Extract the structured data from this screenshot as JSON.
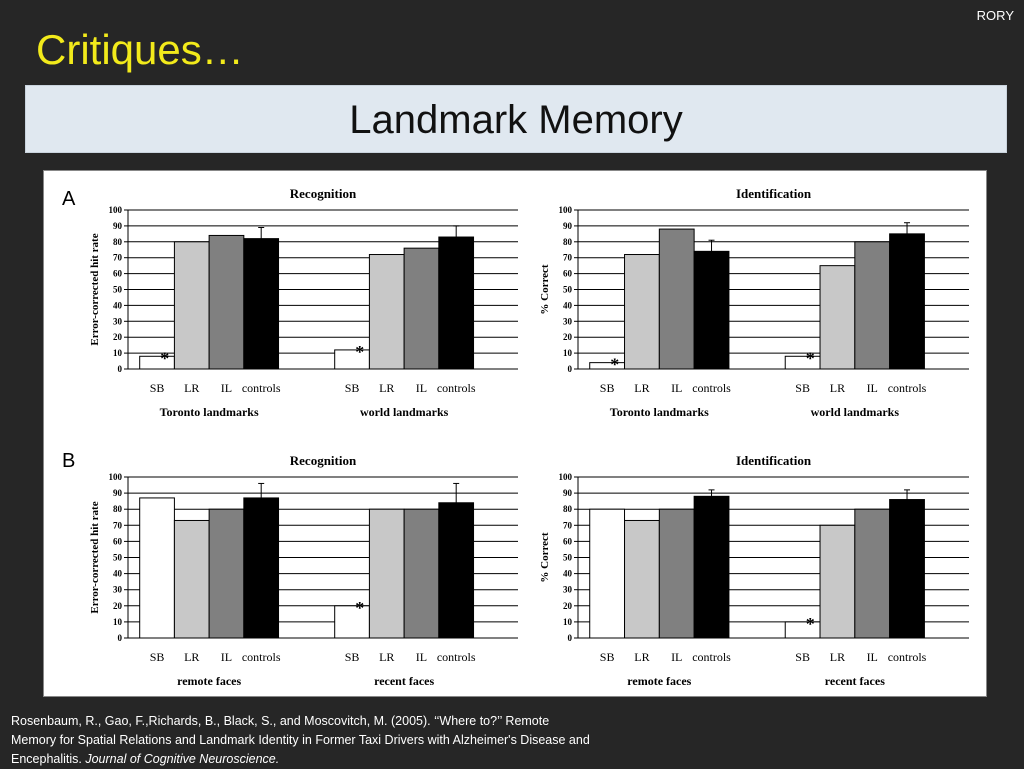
{
  "corner_label": "RORY",
  "slide_title": "Critiques…",
  "banner_title": "Landmark Memory",
  "panel_labels": {
    "a": "A",
    "b": "B"
  },
  "citation": {
    "text": "Rosenbaum, R., Gao, F.,Richards, B., Black, S., and Moscovitch, M. (2005). ‘‘Where to?’’ Remote Memory for Spatial Relations and Landmark Identity in Former Taxi Drivers with Alzheimer's Disease and Encephalitis. ",
    "journal": "Journal of Cognitive Neuroscience."
  },
  "colors": {
    "background": "#262626",
    "title": "#f2ea1b",
    "banner": "#e0e8f0",
    "SB": "#ffffff",
    "LR": "#c8c8c8",
    "IL": "#808080",
    "controls": "#000000"
  },
  "chart_data": [
    {
      "type": "bar",
      "panel": "A",
      "title": "Recognition",
      "ylabel": "Error-corrected hit rate",
      "ylim": [
        0,
        100
      ],
      "yticks": [
        0,
        10,
        20,
        30,
        40,
        50,
        60,
        70,
        80,
        90,
        100
      ],
      "grid": true,
      "groups": [
        "Toronto landmarks",
        "world landmarks"
      ],
      "categories": [
        "SB",
        "LR",
        "IL",
        "controls"
      ],
      "series": [
        {
          "name": "Toronto landmarks",
          "values": [
            8,
            80,
            84,
            82
          ],
          "errors": [
            0,
            0,
            0,
            7
          ],
          "asterisk": [
            true,
            false,
            false,
            false
          ]
        },
        {
          "name": "world landmarks",
          "values": [
            12,
            72,
            76,
            83
          ],
          "errors": [
            0,
            0,
            0,
            7
          ],
          "asterisk": [
            true,
            false,
            false,
            false
          ]
        }
      ]
    },
    {
      "type": "bar",
      "panel": "A",
      "title": "Identification",
      "ylabel": "% Correct",
      "ylim": [
        0,
        100
      ],
      "yticks": [
        0,
        10,
        20,
        30,
        40,
        50,
        60,
        70,
        80,
        90,
        100
      ],
      "grid": true,
      "groups": [
        "Toronto landmarks",
        "world landmarks"
      ],
      "categories": [
        "SB",
        "LR",
        "IL",
        "controls"
      ],
      "series": [
        {
          "name": "Toronto landmarks",
          "values": [
            4,
            72,
            88,
            74
          ],
          "errors": [
            0,
            0,
            0,
            7
          ],
          "asterisk": [
            true,
            false,
            false,
            false
          ]
        },
        {
          "name": "world landmarks",
          "values": [
            8,
            65,
            80,
            85
          ],
          "errors": [
            0,
            0,
            0,
            7
          ],
          "asterisk": [
            true,
            false,
            false,
            false
          ]
        }
      ]
    },
    {
      "type": "bar",
      "panel": "B",
      "title": "Recognition",
      "ylabel": "Error-corrected hit rate",
      "ylim": [
        0,
        100
      ],
      "yticks": [
        0,
        10,
        20,
        30,
        40,
        50,
        60,
        70,
        80,
        90,
        100
      ],
      "grid": true,
      "groups": [
        "remote faces",
        "recent faces"
      ],
      "categories": [
        "SB",
        "LR",
        "IL",
        "controls"
      ],
      "series": [
        {
          "name": "remote faces",
          "values": [
            87,
            73,
            80,
            87
          ],
          "errors": [
            0,
            0,
            0,
            9
          ],
          "asterisk": [
            false,
            false,
            false,
            false
          ]
        },
        {
          "name": "recent faces",
          "values": [
            20,
            80,
            80,
            84
          ],
          "errors": [
            0,
            0,
            0,
            12
          ],
          "asterisk": [
            true,
            false,
            false,
            false
          ]
        }
      ]
    },
    {
      "type": "bar",
      "panel": "B",
      "title": "Identification",
      "ylabel": "% Correct",
      "ylim": [
        0,
        100
      ],
      "yticks": [
        0,
        10,
        20,
        30,
        40,
        50,
        60,
        70,
        80,
        90,
        100
      ],
      "grid": true,
      "groups": [
        "remote faces",
        "recent faces"
      ],
      "categories": [
        "SB",
        "LR",
        "IL",
        "controls"
      ],
      "series": [
        {
          "name": "remote faces",
          "values": [
            80,
            73,
            80,
            88
          ],
          "errors": [
            0,
            0,
            0,
            4
          ],
          "asterisk": [
            false,
            false,
            false,
            false
          ]
        },
        {
          "name": "recent faces",
          "values": [
            10,
            70,
            80,
            86
          ],
          "errors": [
            0,
            0,
            0,
            6
          ],
          "asterisk": [
            true,
            false,
            false,
            false
          ]
        }
      ]
    }
  ]
}
